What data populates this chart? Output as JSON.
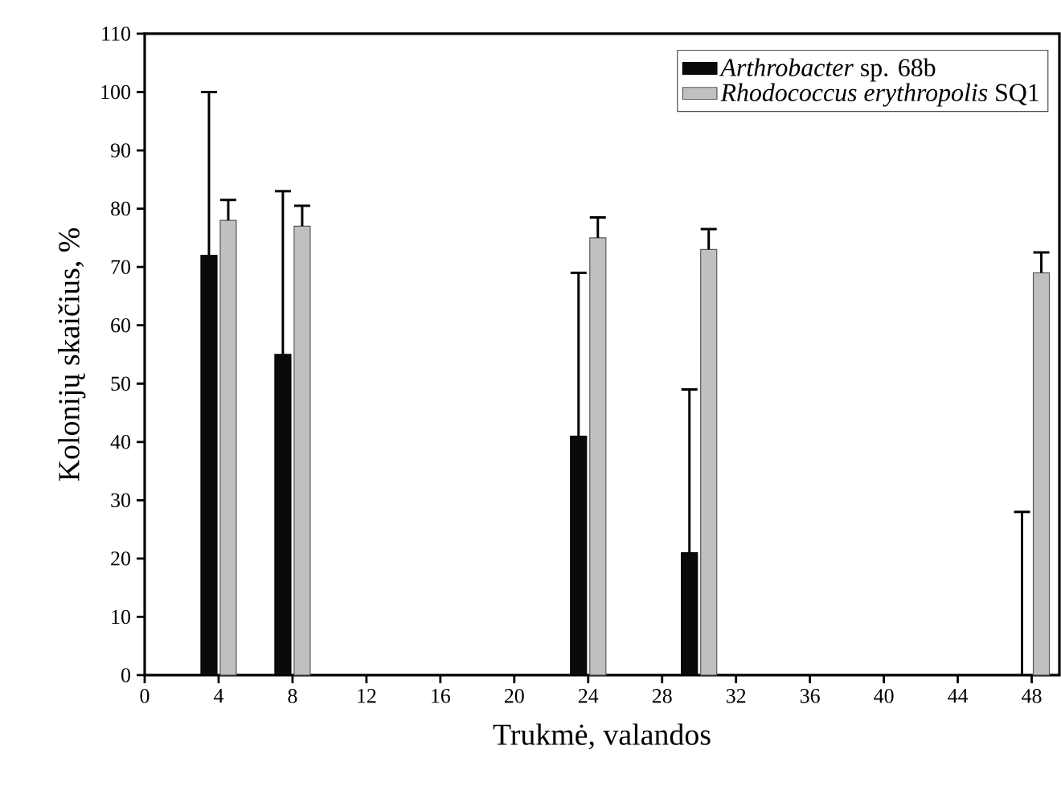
{
  "chart_data": {
    "type": "bar",
    "xlabel": "Trukmė, valandos",
    "ylabel": "Kolonijų skaičius, %",
    "x": [
      4,
      8,
      24,
      30,
      48
    ],
    "series": [
      {
        "name": "*Arthrobacter* sp. 68b",
        "color": "#0a0a0a",
        "values": [
          72,
          55,
          41,
          21,
          0
        ],
        "errors": [
          [
            72,
            100
          ],
          [
            55,
            83
          ],
          [
            41,
            69
          ],
          [
            21,
            49
          ],
          [
            0,
            28
          ]
        ]
      },
      {
        "name": "*Rhodococcus erythropolis* SQ1",
        "color": "#c0c0c0",
        "values": [
          78,
          77,
          75,
          73,
          69
        ],
        "errors": [
          [
            78,
            81.5
          ],
          [
            77,
            80.5
          ],
          [
            75,
            78.5
          ],
          [
            73,
            76.5
          ],
          [
            69,
            72.5
          ]
        ]
      }
    ],
    "xlim": [
      0,
      49.5
    ],
    "xticks": [
      0,
      4,
      8,
      12,
      16,
      20,
      24,
      28,
      32,
      36,
      40,
      44,
      48
    ],
    "ylim": [
      0,
      110
    ],
    "yticks": [
      0,
      10,
      20,
      30,
      40,
      50,
      60,
      70,
      80,
      90,
      100,
      110
    ],
    "legend": "top right"
  }
}
